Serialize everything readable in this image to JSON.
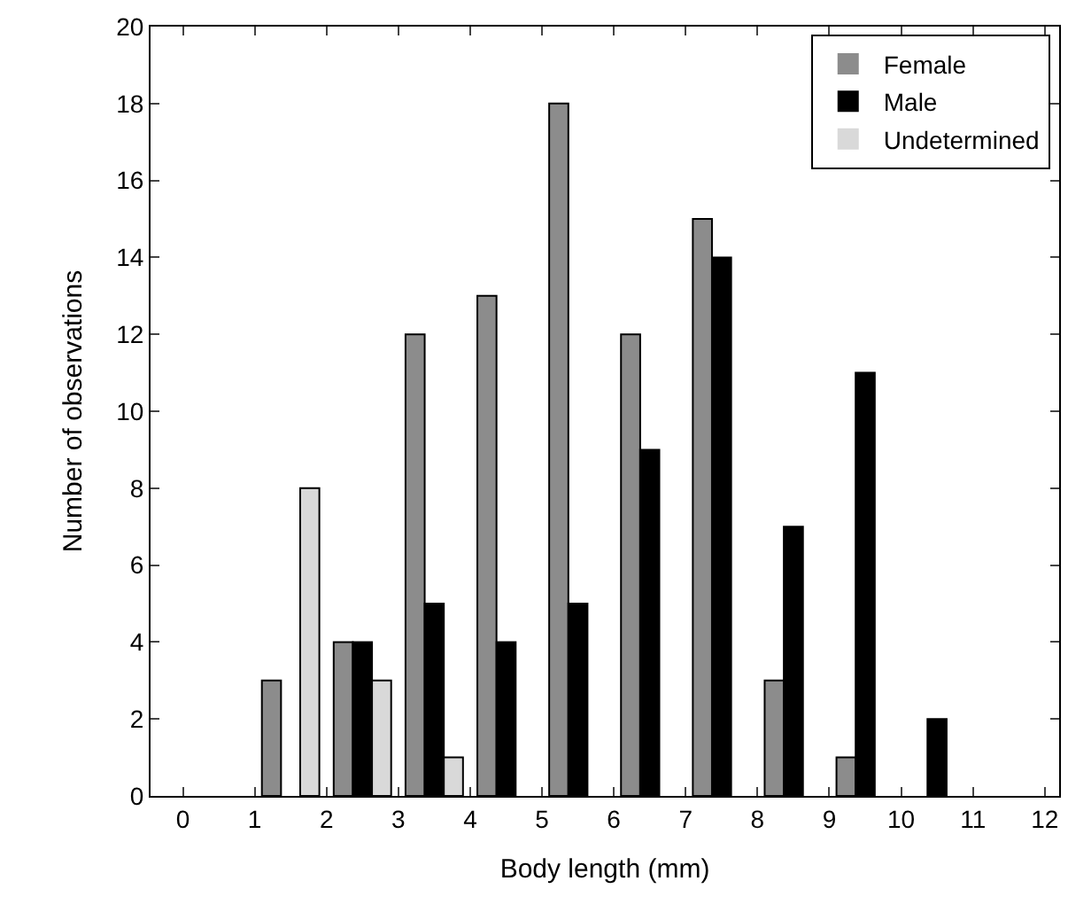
{
  "chart_data": {
    "type": "bar",
    "xlabel": "Body length (mm)",
    "ylabel": "Number of observations",
    "x": [
      0.5,
      1.5,
      2.5,
      3.5,
      4.5,
      5.5,
      6.5,
      7.5,
      8.5,
      9.5,
      10.5,
      11.5
    ],
    "series": [
      {
        "name": "Female",
        "color": "#8c8c8c",
        "values": [
          0,
          3,
          4,
          12,
          13,
          18,
          12,
          15,
          3,
          1,
          0,
          0
        ]
      },
      {
        "name": "Male",
        "color": "#000000",
        "values": [
          0,
          0,
          4,
          5,
          4,
          5,
          9,
          14,
          7,
          11,
          2,
          0
        ]
      },
      {
        "name": "Undetermined",
        "color": "#d9d9d9",
        "values": [
          0,
          8,
          3,
          1,
          0,
          0,
          0,
          0,
          0,
          0,
          0,
          0
        ]
      }
    ],
    "xlim": [
      -0.45,
      12.2
    ],
    "xticks": [
      0,
      1,
      2,
      3,
      4,
      5,
      6,
      7,
      8,
      9,
      10,
      11,
      12
    ],
    "ylim": [
      0,
      20
    ],
    "yticks": [
      0,
      2,
      4,
      6,
      8,
      10,
      12,
      14,
      16,
      18,
      20
    ],
    "legend": "top right"
  }
}
